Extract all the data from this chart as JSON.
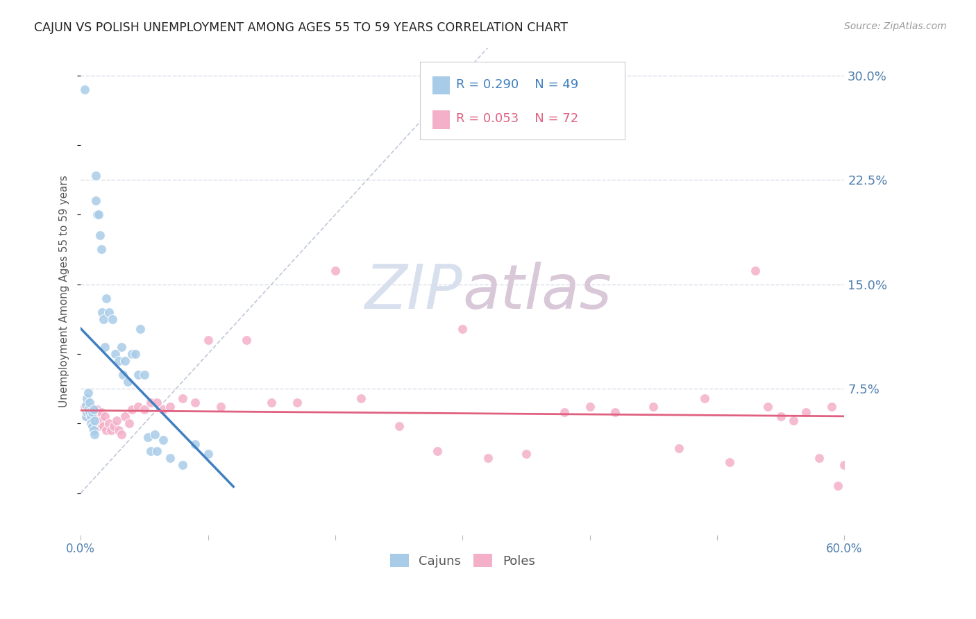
{
  "title": "CAJUN VS POLISH UNEMPLOYMENT AMONG AGES 55 TO 59 YEARS CORRELATION CHART",
  "source": "Source: ZipAtlas.com",
  "ylabel": "Unemployment Among Ages 55 to 59 years",
  "xlim": [
    0.0,
    0.6
  ],
  "ylim": [
    -0.03,
    0.32
  ],
  "xticks": [
    0.0,
    0.1,
    0.2,
    0.3,
    0.4,
    0.5,
    0.6
  ],
  "xtick_labels": [
    "0.0%",
    "",
    "",
    "",
    "",
    "",
    "60.0%"
  ],
  "ytick_labels_right": [
    "7.5%",
    "15.0%",
    "22.5%",
    "30.0%"
  ],
  "ytick_vals_right": [
    0.075,
    0.15,
    0.225,
    0.3
  ],
  "cajun_R": "R = 0.290",
  "cajun_N": "N = 49",
  "poles_R": "R = 0.053",
  "poles_N": "N = 72",
  "cajun_color": "#a8cce8",
  "poles_color": "#f4b0c8",
  "cajun_line_color": "#4080c0",
  "poles_line_color": "#e06080",
  "diagonal_color": "#c0c8d8",
  "watermark_color": "#d8e0ee",
  "background_color": "#ffffff",
  "grid_color": "#d8dde8",
  "cajun_x": [
    0.003,
    0.004,
    0.004,
    0.005,
    0.005,
    0.006,
    0.006,
    0.007,
    0.007,
    0.008,
    0.008,
    0.009,
    0.009,
    0.01,
    0.01,
    0.011,
    0.011,
    0.012,
    0.012,
    0.013,
    0.014,
    0.015,
    0.016,
    0.017,
    0.018,
    0.019,
    0.02,
    0.022,
    0.025,
    0.027,
    0.03,
    0.032,
    0.033,
    0.035,
    0.037,
    0.04,
    0.043,
    0.045,
    0.047,
    0.05,
    0.053,
    0.055,
    0.058,
    0.06,
    0.065,
    0.07,
    0.08,
    0.09,
    0.1
  ],
  "cajun_y": [
    0.29,
    0.063,
    0.055,
    0.068,
    0.058,
    0.072,
    0.06,
    0.058,
    0.065,
    0.055,
    0.05,
    0.058,
    0.048,
    0.06,
    0.045,
    0.052,
    0.042,
    0.228,
    0.21,
    0.2,
    0.2,
    0.185,
    0.175,
    0.13,
    0.125,
    0.105,
    0.14,
    0.13,
    0.125,
    0.1,
    0.095,
    0.105,
    0.085,
    0.095,
    0.08,
    0.1,
    0.1,
    0.085,
    0.118,
    0.085,
    0.04,
    0.03,
    0.042,
    0.03,
    0.038,
    0.025,
    0.02,
    0.035,
    0.028
  ],
  "poles_x": [
    0.003,
    0.004,
    0.005,
    0.005,
    0.006,
    0.007,
    0.007,
    0.008,
    0.008,
    0.009,
    0.009,
    0.01,
    0.01,
    0.011,
    0.011,
    0.012,
    0.012,
    0.013,
    0.013,
    0.014,
    0.015,
    0.015,
    0.016,
    0.017,
    0.018,
    0.019,
    0.02,
    0.022,
    0.024,
    0.026,
    0.028,
    0.03,
    0.032,
    0.035,
    0.038,
    0.04,
    0.045,
    0.05,
    0.055,
    0.06,
    0.065,
    0.07,
    0.08,
    0.09,
    0.1,
    0.11,
    0.13,
    0.15,
    0.17,
    0.2,
    0.22,
    0.25,
    0.28,
    0.3,
    0.32,
    0.35,
    0.38,
    0.4,
    0.42,
    0.45,
    0.47,
    0.49,
    0.51,
    0.53,
    0.54,
    0.55,
    0.56,
    0.57,
    0.58,
    0.59,
    0.595,
    0.6
  ],
  "poles_y": [
    0.062,
    0.058,
    0.055,
    0.06,
    0.058,
    0.062,
    0.055,
    0.058,
    0.06,
    0.055,
    0.052,
    0.06,
    0.055,
    0.052,
    0.058,
    0.05,
    0.055,
    0.048,
    0.06,
    0.055,
    0.052,
    0.048,
    0.058,
    0.052,
    0.048,
    0.055,
    0.045,
    0.05,
    0.045,
    0.048,
    0.052,
    0.045,
    0.042,
    0.055,
    0.05,
    0.06,
    0.062,
    0.06,
    0.065,
    0.065,
    0.06,
    0.062,
    0.068,
    0.065,
    0.11,
    0.062,
    0.11,
    0.065,
    0.065,
    0.16,
    0.068,
    0.048,
    0.03,
    0.118,
    0.025,
    0.028,
    0.058,
    0.062,
    0.058,
    0.062,
    0.032,
    0.068,
    0.022,
    0.16,
    0.062,
    0.055,
    0.052,
    0.058,
    0.025,
    0.062,
    0.005,
    0.02
  ]
}
